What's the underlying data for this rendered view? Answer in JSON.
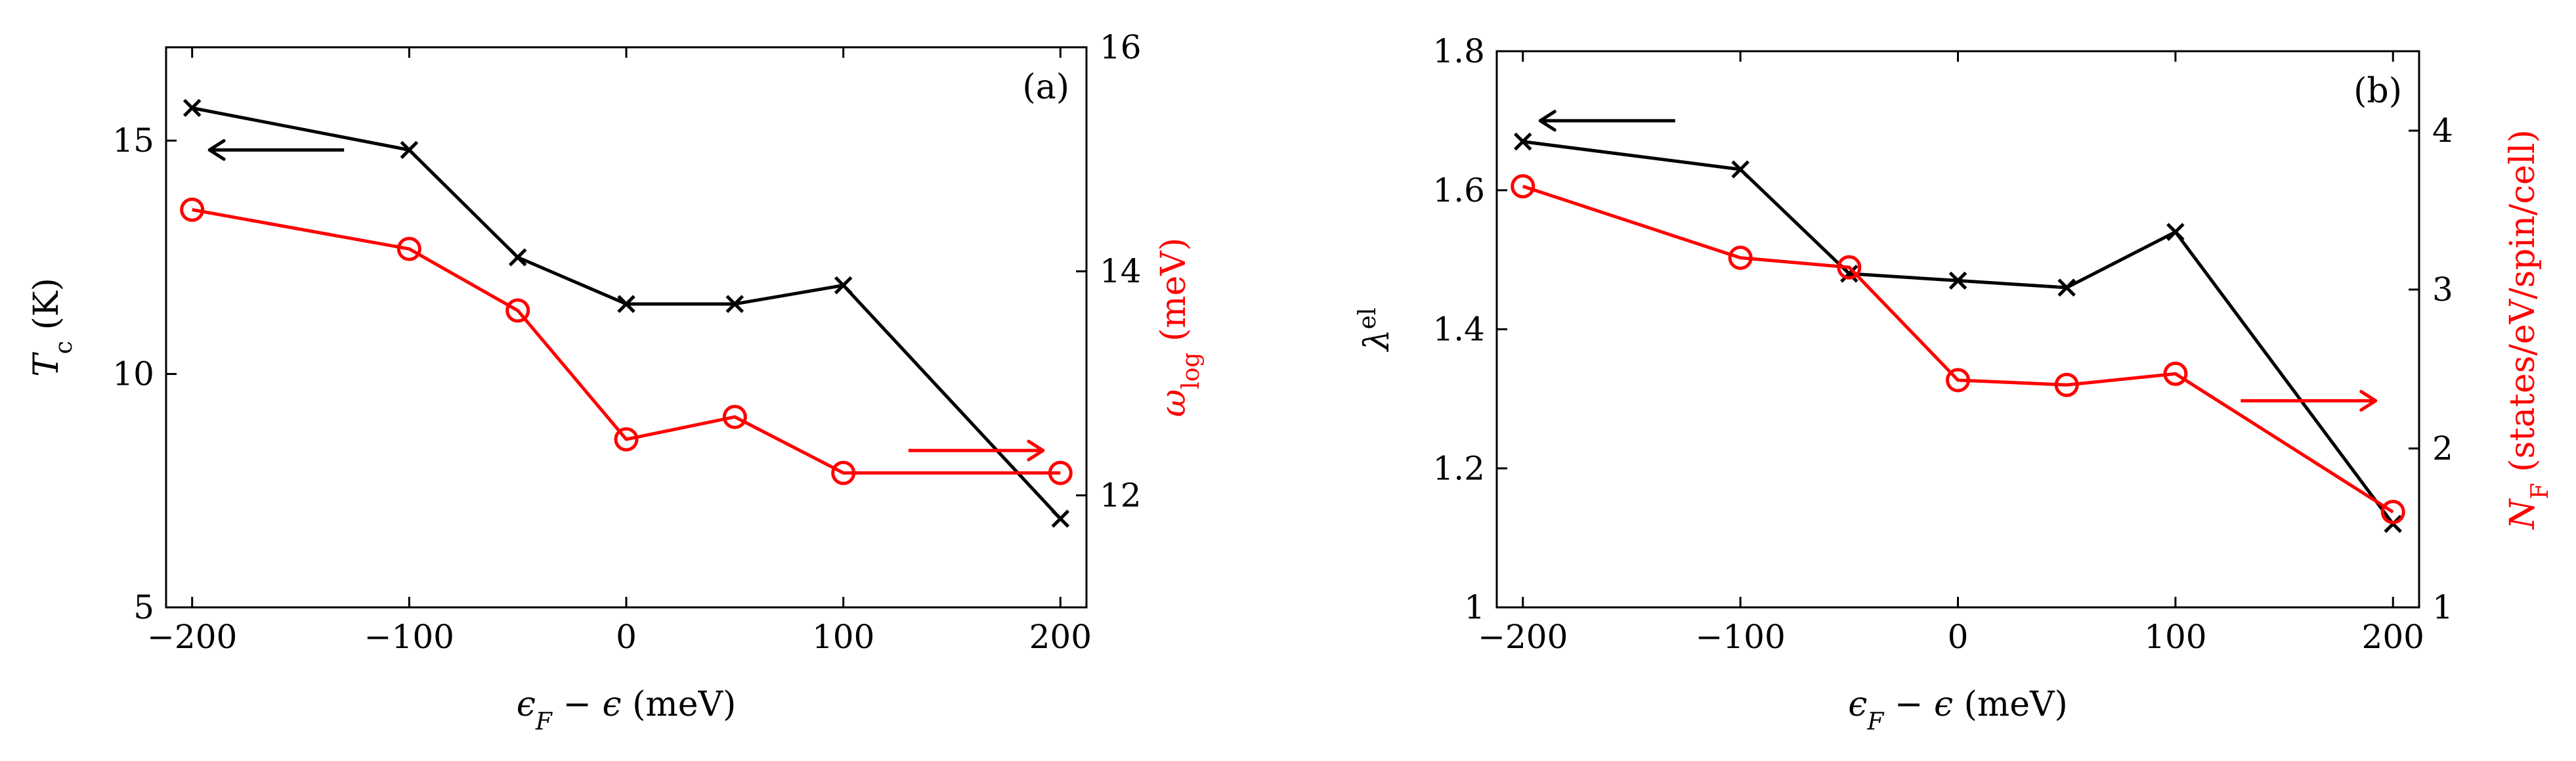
{
  "colors": {
    "axis": "#000000",
    "series_black": "#000000",
    "series_red": "#ff0000",
    "background": "#ffffff"
  },
  "chart_data": [
    {
      "type": "line",
      "panel_label": "(a)",
      "xlabel": "ϵ_F − ϵ (meV)",
      "ylabel_left": "T_c (K)",
      "ylabel_right": "ω_log (meV)",
      "xlim": [
        -212,
        212
      ],
      "ylim_left": [
        5,
        17
      ],
      "ylim_right": [
        11,
        16
      ],
      "xticks": [
        -200,
        -100,
        0,
        100,
        200
      ],
      "xtick_labels": [
        "−200",
        "−100",
        "0",
        "100",
        "200"
      ],
      "yticks_left": [
        5,
        10,
        15
      ],
      "yticks_right": [
        12,
        14,
        16
      ],
      "series": [
        {
          "axis": "left",
          "marker": "x",
          "color": "#000000",
          "x": [
            -200,
            -100,
            -50,
            0,
            50,
            100,
            200
          ],
          "y": [
            15.7,
            14.8,
            12.5,
            11.5,
            11.5,
            11.9,
            6.9
          ]
        },
        {
          "axis": "right",
          "marker": "o",
          "color": "#ff0000",
          "x": [
            -200,
            -100,
            -50,
            0,
            50,
            100,
            200
          ],
          "y": [
            14.55,
            14.2,
            13.65,
            12.5,
            12.7,
            12.2,
            12.2
          ]
        }
      ],
      "arrows": [
        {
          "direction": "left",
          "color": "#000000",
          "x_from": -130,
          "x_to": -192,
          "axis": "left",
          "y": 14.8
        },
        {
          "direction": "right",
          "color": "#ff0000",
          "x_from": 130,
          "x_to": 192,
          "axis": "right",
          "y": 12.4
        }
      ]
    },
    {
      "type": "line",
      "panel_label": "(b)",
      "xlabel": "ϵ_F − ϵ (meV)",
      "ylabel_left": "λ^el",
      "ylabel_right": "N_F (states/eV/spin/cell)",
      "xlim": [
        -212,
        212
      ],
      "ylim_left": [
        1.0,
        1.8
      ],
      "ylim_right": [
        1,
        4.5
      ],
      "xticks": [
        -200,
        -100,
        0,
        100,
        200
      ],
      "xtick_labels": [
        "−200",
        "−100",
        "0",
        "100",
        "200"
      ],
      "yticks_left": [
        1.0,
        1.2,
        1.4,
        1.6,
        1.8
      ],
      "ytick_labels_left": [
        "1",
        "1.2",
        "1.4",
        "1.6",
        "1.8"
      ],
      "yticks_right": [
        1,
        2,
        3,
        4
      ],
      "series": [
        {
          "axis": "left",
          "marker": "x",
          "color": "#000000",
          "x": [
            -200,
            -100,
            -50,
            0,
            50,
            100,
            200
          ],
          "y": [
            1.67,
            1.63,
            1.48,
            1.47,
            1.46,
            1.54,
            1.12
          ]
        },
        {
          "axis": "right",
          "marker": "o",
          "color": "#ff0000",
          "x": [
            -200,
            -100,
            -50,
            0,
            50,
            100,
            200
          ],
          "y": [
            3.65,
            3.2,
            3.14,
            2.43,
            2.4,
            2.47,
            1.6
          ]
        }
      ],
      "arrows": [
        {
          "direction": "left",
          "color": "#000000",
          "x_from": -130,
          "x_to": -192,
          "axis": "left",
          "y": 1.7
        },
        {
          "direction": "right",
          "color": "#ff0000",
          "x_from": 130,
          "x_to": 192,
          "axis": "right",
          "y": 2.3
        }
      ]
    }
  ]
}
